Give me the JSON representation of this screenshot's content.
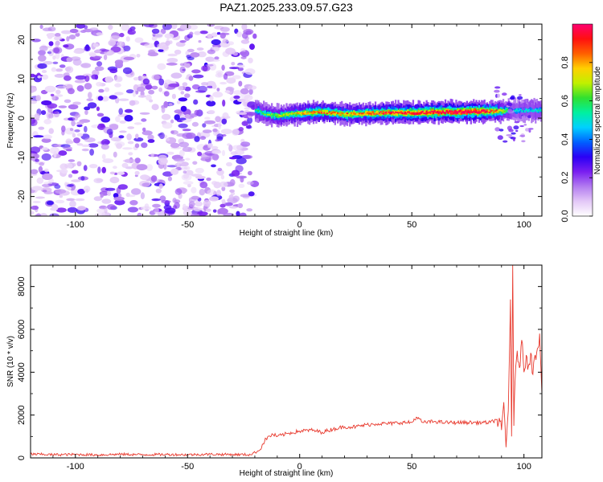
{
  "figure": {
    "title": "PAZ1.2025.233.09.57.G23"
  },
  "chart_data": [
    {
      "type": "heatmap",
      "name": "spectrogram",
      "title": "PAZ1.2025.233.09.57.G23",
      "xlabel": "Height of straight line (km)",
      "ylabel": "Frequency (Hz)",
      "xlim": [
        -120,
        108
      ],
      "ylim": [
        -25,
        24
      ],
      "xticks": [
        -100,
        -50,
        0,
        50,
        100
      ],
      "xtick_labels": [
        "-100",
        "-50",
        "0",
        "50",
        "100"
      ],
      "yticks": [
        -20,
        -10,
        0,
        10,
        20
      ],
      "ytick_labels": [
        "-20",
        "-10",
        "0",
        "10",
        "20"
      ],
      "noise_region_x": [
        -120,
        -20
      ],
      "signal_track": {
        "x_start": -20,
        "x_end": 108,
        "freq_center": [
          [
            -20,
            2.0
          ],
          [
            -15,
            1.0
          ],
          [
            -10,
            0.5
          ],
          [
            -5,
            1.0
          ],
          [
            0,
            1.2
          ],
          [
            10,
            1.6
          ],
          [
            20,
            1.0
          ],
          [
            30,
            1.2
          ],
          [
            40,
            1.4
          ],
          [
            50,
            1.3
          ],
          [
            60,
            1.5
          ],
          [
            70,
            1.6
          ],
          [
            80,
            1.7
          ],
          [
            88,
            1.8
          ],
          [
            95,
            2.0
          ],
          [
            108,
            2.0
          ]
        ],
        "peak_amplitude": [
          [
            -20,
            0.45
          ],
          [
            -10,
            0.55
          ],
          [
            0,
            0.65
          ],
          [
            10,
            0.75
          ],
          [
            20,
            0.7
          ],
          [
            30,
            0.75
          ],
          [
            40,
            0.8
          ],
          [
            50,
            0.85
          ],
          [
            60,
            0.9
          ],
          [
            70,
            0.95
          ],
          [
            80,
            0.95
          ],
          [
            88,
            0.7
          ],
          [
            95,
            0.35
          ],
          [
            108,
            0.4
          ]
        ]
      },
      "colorbar": {
        "label": "Normalized spectral amplitude",
        "range": [
          0,
          1
        ],
        "ticks": [
          0.0,
          0.2,
          0.4,
          0.6,
          0.8
        ],
        "tick_labels": [
          "0.0",
          "0.2",
          "0.4",
          "0.6",
          "0.8"
        ],
        "colors": [
          "#ffffff",
          "#e3c8f7",
          "#b37cf0",
          "#7a1ff0",
          "#2b00f5",
          "#0060ff",
          "#00d0ff",
          "#00f0a0",
          "#30e030",
          "#c0f000",
          "#ffd000",
          "#ff6000",
          "#ff1010",
          "#ff0070"
        ]
      }
    },
    {
      "type": "line",
      "name": "snr",
      "xlabel": "Height of straight line (km)",
      "ylabel": "SNR (10 * v/v)",
      "xlim": [
        -120,
        108
      ],
      "ylim": [
        0,
        9000
      ],
      "xticks": [
        -100,
        -50,
        0,
        50,
        100
      ],
      "xtick_labels": [
        "-100",
        "-50",
        "0",
        "50",
        "100"
      ],
      "yticks": [
        0,
        2000,
        4000,
        6000,
        8000
      ],
      "ytick_labels": [
        "0",
        "2000",
        "4000",
        "6000",
        "8000"
      ],
      "grid": false,
      "series": [
        {
          "color": "#e8392d",
          "x": [
            -120,
            -110,
            -100,
            -90,
            -80,
            -70,
            -60,
            -50,
            -40,
            -30,
            -22,
            -18,
            -15,
            -12,
            -10,
            -5,
            0,
            5,
            10,
            15,
            20,
            25,
            30,
            35,
            40,
            45,
            50,
            52,
            55,
            60,
            65,
            70,
            75,
            80,
            85,
            88,
            90,
            91,
            92,
            93,
            94,
            94.5,
            95,
            95.5,
            96,
            97,
            98,
            99,
            100,
            101,
            102,
            103,
            104,
            105,
            106,
            107,
            108
          ],
          "y": [
            180,
            150,
            160,
            140,
            170,
            150,
            160,
            150,
            170,
            160,
            150,
            350,
            900,
            1100,
            1000,
            1150,
            1250,
            1300,
            1200,
            1350,
            1450,
            1450,
            1550,
            1600,
            1600,
            1650,
            1650,
            1900,
            1650,
            1700,
            1650,
            1650,
            1650,
            1650,
            1650,
            1800,
            1300,
            2600,
            500,
            2200,
            7400,
            1000,
            9000,
            1500,
            3500,
            5000,
            4200,
            5500,
            4000,
            4800,
            4300,
            4900,
            3900,
            4800,
            5100,
            5800,
            3000
          ]
        }
      ]
    }
  ]
}
